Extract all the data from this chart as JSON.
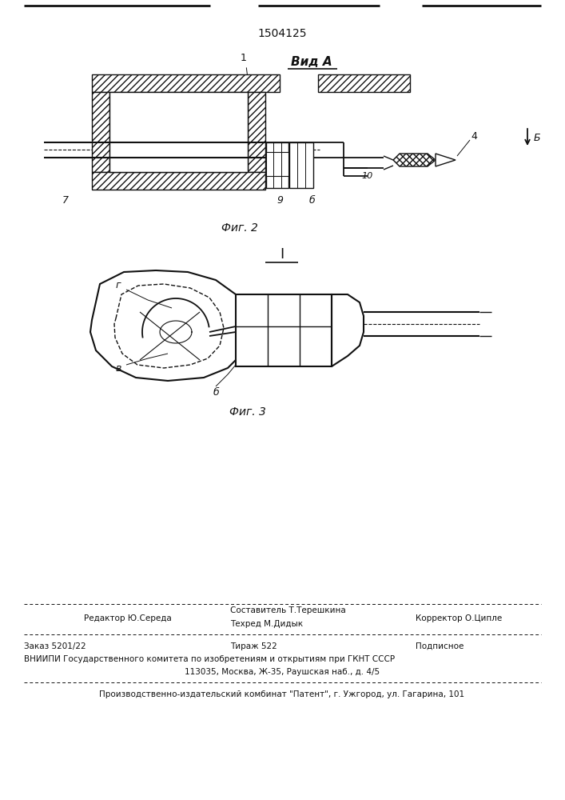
{
  "patent_number": "1504125",
  "fig2_label": "Фиг. 2",
  "fig3_label": "Фиг. 3",
  "vida_label": "Вид A",
  "section_label": "I",
  "line_color": "#111111",
  "footer_editor": "Редактор Ю.Середа",
  "footer_author": "Составитель Т.Терешкина",
  "footer_tech": "Техред М.Дидык",
  "footer_corrector": "Корректор О.Ципле",
  "footer_order": "Заказ 5201/22",
  "footer_tirazh": "Тираж 522",
  "footer_podp": "Подписное",
  "footer_vniip": "ВНИИПИ Государственного комитета по изобретениям и открытиям при ГКНТ СССР",
  "footer_addr": "113035, Москва, Ж-35, Раушская наб., д. 4/5",
  "footer_pub": "Производственно-издательский комбинат \"Патент\", г. Ужгород, ул. Гагарина, 101"
}
